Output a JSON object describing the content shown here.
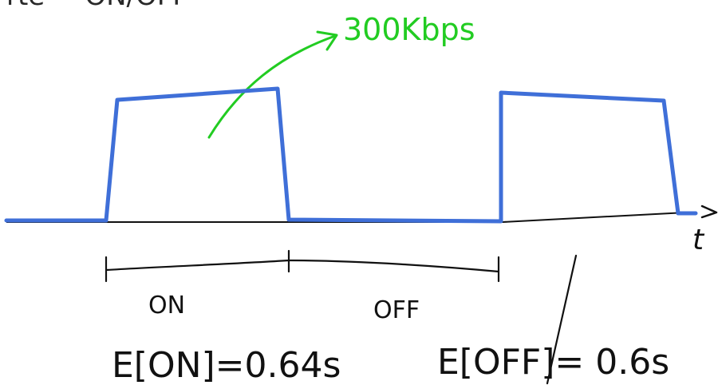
{
  "colors": {
    "signal": "#3f6fd8",
    "ink": "#111111",
    "annotation": "#22cc22",
    "background": "#ffffff"
  },
  "top_fragment": "rte = ON/OFF",
  "rate_label": "300Kbps",
  "axis_label": "t",
  "periods": {
    "on_label": "ON",
    "off_label": "OFF"
  },
  "expectations": {
    "on": "E[ON]=0.64s",
    "off": "E[OFF]= 0.6s"
  }
}
